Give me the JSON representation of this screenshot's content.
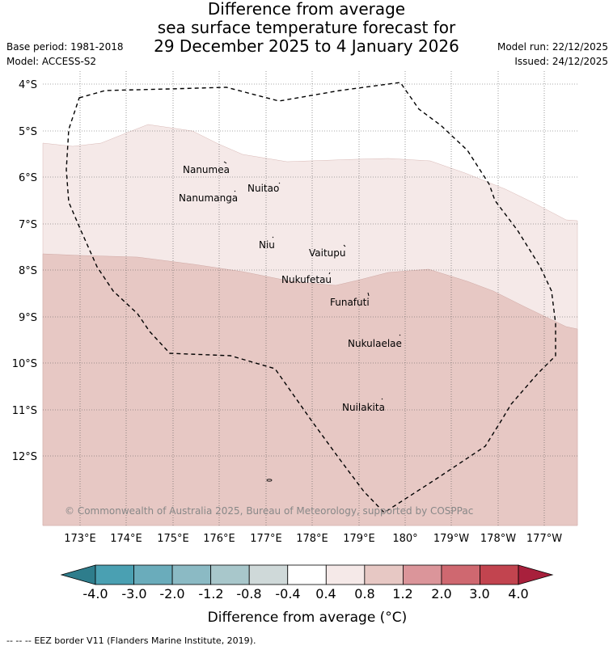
{
  "header": {
    "title_lines": [
      "Difference from average",
      "sea surface temperature forecast for",
      "29 December 2025 to 4 January 2026"
    ],
    "left_meta": [
      "Base period: 1981-2018",
      "Model: ACCESS-S2"
    ],
    "right_meta": [
      "Model run: 22/12/2025",
      "Issued: 24/12/2025"
    ]
  },
  "map": {
    "lat_labels": [
      "4°S",
      "5°S",
      "6°S",
      "7°S",
      "8°S",
      "9°S",
      "10°S",
      "11°S",
      "12°S"
    ],
    "lon_labels": [
      "173°E",
      "174°E",
      "175°E",
      "176°E",
      "177°E",
      "178°E",
      "179°E",
      "180°",
      "179°W",
      "178°W",
      "177°W"
    ],
    "islands": [
      {
        "name": "Nanumea"
      },
      {
        "name": "Nuitao"
      },
      {
        "name": "Nanumanga"
      },
      {
        "name": "Niu"
      },
      {
        "name": "Vaitupu"
      },
      {
        "name": "Nukufetau"
      },
      {
        "name": "Funafuti"
      },
      {
        "name": "Nukulaelae"
      },
      {
        "name": "Nuilakita"
      }
    ],
    "copyright": "© Commonwealth of Australia 2025, Bureau of Meteorology, supported by COSPPac",
    "zone_colors": {
      "band_0_4_0_8": "#f5e9e8",
      "band_0_8_1_2": "#e7c8c4",
      "eez_line": "#000000"
    }
  },
  "colorbar": {
    "tick_labels": [
      "-4.0",
      "-3.0",
      "-2.0",
      "-1.2",
      "-0.8",
      "-0.4",
      "0.4",
      "0.8",
      "1.2",
      "2.0",
      "3.0",
      "4.0"
    ],
    "colors": [
      "#2e7d8c",
      "#4aa0b2",
      "#6aacbb",
      "#8bbac4",
      "#a8c7cb",
      "#cfd9d9",
      "#ffffff",
      "#f5e9e8",
      "#e7c8c4",
      "#db959a",
      "#cf6870",
      "#c2444f",
      "#a8203c"
    ],
    "label": "Difference from average (°C)"
  },
  "footer": {
    "legend_line": "--  --  --",
    "legend_text": "EEZ border V11 (Flanders Marine Institute, 2019)."
  }
}
